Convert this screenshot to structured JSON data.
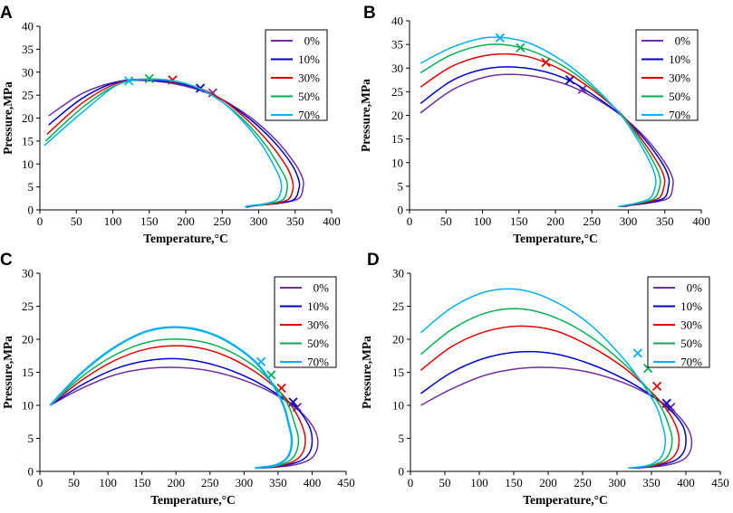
{
  "chart_data": [
    {
      "panel": "A",
      "type": "line",
      "xlabel": "Temperature,°C",
      "ylabel": "Pressure,MPa",
      "xlim": [
        0,
        400
      ],
      "ylim": [
        0,
        40
      ],
      "xticks": [
        0,
        50,
        100,
        150,
        200,
        250,
        300,
        350,
        400
      ],
      "yticks": [
        0,
        5,
        10,
        15,
        20,
        25,
        30,
        35,
        40
      ],
      "legend_position": "top-right",
      "series": [
        {
          "name": "0%",
          "color": "#7030a0",
          "critical_point": [
            237,
            25.5
          ],
          "x": [
            12,
            60,
            110,
            160,
            210,
            250,
            290,
            325,
            350,
            360,
            361,
            355,
            330,
            300,
            290,
            285
          ],
          "y": [
            20.5,
            25.5,
            28,
            28,
            26.5,
            24,
            20,
            15,
            10,
            7,
            5,
            2.5,
            1.5,
            1.0,
            0.8,
            0.6
          ]
        },
        {
          "name": "10%",
          "color": "#0000cc",
          "critical_point": [
            220,
            26.5
          ],
          "x": [
            12,
            60,
            110,
            160,
            210,
            250,
            290,
            320,
            345,
            355,
            355,
            348,
            325,
            300,
            288,
            284
          ],
          "y": [
            18.5,
            24.5,
            28,
            28.2,
            26.8,
            24,
            19.5,
            15,
            10,
            6.5,
            4.5,
            2.2,
            1.4,
            1.0,
            0.8,
            0.6
          ]
        },
        {
          "name": "30%",
          "color": "#e00000",
          "critical_point": [
            182,
            28.3
          ],
          "x": [
            10,
            60,
            110,
            160,
            210,
            250,
            285,
            315,
            338,
            346,
            347,
            340,
            318,
            298,
            286,
            283
          ],
          "y": [
            16.5,
            23.5,
            27.8,
            28.4,
            27,
            24,
            19.5,
            14.5,
            9.5,
            6.5,
            4.5,
            2.2,
            1.3,
            1.0,
            0.8,
            0.6
          ]
        },
        {
          "name": "50%",
          "color": "#00b050",
          "critical_point": [
            150,
            28.6
          ],
          "x": [
            8,
            60,
            110,
            160,
            210,
            250,
            283,
            310,
            330,
            338,
            339,
            333,
            312,
            296,
            285,
            282
          ],
          "y": [
            15,
            22.5,
            27.5,
            28.5,
            27,
            23.5,
            19,
            14,
            9,
            6.5,
            4.5,
            2.2,
            1.3,
            1.0,
            0.8,
            0.6
          ]
        },
        {
          "name": "70%",
          "color": "#00b0f0",
          "critical_point": [
            122,
            28.1
          ],
          "x": [
            6,
            60,
            110,
            160,
            210,
            250,
            280,
            305,
            323,
            330,
            331,
            325,
            307,
            293,
            284,
            281
          ],
          "y": [
            14,
            21.5,
            27.5,
            28.4,
            27,
            23.5,
            19,
            14,
            9,
            6.5,
            4.5,
            2.2,
            1.3,
            1.0,
            0.8,
            0.6
          ]
        }
      ]
    },
    {
      "panel": "B",
      "type": "line",
      "xlabel": "Temperature,°C",
      "ylabel": "Pressure,MPa",
      "xlim": [
        0,
        400
      ],
      "ylim": [
        0,
        40
      ],
      "xticks": [
        0,
        50,
        100,
        150,
        200,
        250,
        300,
        350,
        400
      ],
      "yticks": [
        0,
        5,
        10,
        15,
        20,
        25,
        30,
        35,
        40
      ],
      "legend_position": "top-right",
      "series": [
        {
          "name": "0%",
          "color": "#7030a0",
          "critical_point": [
            237,
            25.5
          ],
          "x": [
            15,
            60,
            110,
            160,
            210,
            250,
            290,
            325,
            350,
            360,
            361,
            355,
            330,
            305,
            295
          ],
          "y": [
            20.5,
            25.5,
            28.3,
            28.5,
            26.8,
            24,
            20,
            15,
            10,
            7,
            5,
            2.5,
            1.5,
            1.0,
            0.7
          ]
        },
        {
          "name": "10%",
          "color": "#0000cc",
          "critical_point": [
            220,
            27.5
          ],
          "x": [
            15,
            60,
            110,
            160,
            210,
            250,
            290,
            322,
            346,
            355,
            355,
            349,
            325,
            302,
            292
          ],
          "y": [
            22.5,
            27.5,
            30,
            30,
            28,
            24.5,
            20,
            15,
            10,
            7,
            5,
            2.5,
            1.5,
            1.0,
            0.7
          ]
        },
        {
          "name": "30%",
          "color": "#e00000",
          "critical_point": [
            187,
            31.2
          ],
          "x": [
            15,
            60,
            110,
            160,
            210,
            250,
            290,
            318,
            340,
            349,
            349,
            342,
            320,
            300,
            290
          ],
          "y": [
            26,
            30.5,
            32.8,
            32.5,
            29.5,
            25.5,
            20.3,
            15,
            10,
            7,
            5,
            2.5,
            1.5,
            1.0,
            0.7
          ]
        },
        {
          "name": "50%",
          "color": "#00b050",
          "critical_point": [
            152,
            34.3
          ],
          "x": [
            15,
            60,
            110,
            160,
            210,
            250,
            290,
            315,
            335,
            343,
            343,
            336,
            316,
            298,
            288
          ],
          "y": [
            29,
            33,
            35,
            34,
            30.5,
            26,
            20.2,
            15,
            10,
            7,
            5,
            2.5,
            1.5,
            1.0,
            0.7
          ]
        },
        {
          "name": "70%",
          "color": "#00b0f0",
          "critical_point": [
            124,
            36.4
          ],
          "x": [
            15,
            60,
            110,
            160,
            210,
            250,
            290,
            312,
            330,
            337,
            337,
            330,
            312,
            296,
            286
          ],
          "y": [
            31,
            34.5,
            36.5,
            35.5,
            31.5,
            26.5,
            20,
            15,
            10,
            7,
            5,
            2.5,
            1.5,
            1.0,
            0.7
          ]
        }
      ]
    },
    {
      "panel": "C",
      "type": "line",
      "xlabel": "Temperature,°C",
      "ylabel": "Pressure,MPa",
      "xlim": [
        0,
        450
      ],
      "ylim": [
        0,
        30
      ],
      "xticks": [
        0,
        50,
        100,
        150,
        200,
        250,
        300,
        350,
        400,
        450
      ],
      "yticks": [
        0,
        5,
        10,
        15,
        20,
        25,
        30
      ],
      "legend_position": "top-right",
      "series": [
        {
          "name": "0%",
          "color": "#7030a0",
          "critical_point": [
            378,
            9.7
          ],
          "x": [
            15,
            60,
            110,
            160,
            210,
            260,
            310,
            350,
            380,
            400,
            408,
            406,
            395,
            370,
            340,
            325
          ],
          "y": [
            10,
            12.5,
            14.6,
            15.6,
            15.7,
            15,
            13.4,
            11.4,
            9.3,
            7,
            5,
            3,
            1.7,
            0.9,
            0.6,
            0.5
          ]
        },
        {
          "name": "10%",
          "color": "#0000cc",
          "critical_point": [
            372,
            10.5
          ],
          "x": [
            15,
            60,
            110,
            160,
            210,
            260,
            310,
            350,
            378,
            395,
            400,
            397,
            385,
            360,
            335,
            322
          ],
          "y": [
            10,
            13,
            15.5,
            16.8,
            17,
            16,
            14,
            11.6,
            9.5,
            7,
            5,
            3,
            1.7,
            0.9,
            0.6,
            0.5
          ]
        },
        {
          "name": "30%",
          "color": "#e00000",
          "critical_point": [
            355,
            12.6
          ],
          "x": [
            15,
            60,
            110,
            160,
            210,
            260,
            310,
            350,
            372,
            385,
            390,
            387,
            376,
            355,
            330,
            320
          ],
          "y": [
            10,
            13.7,
            16.8,
            18.6,
            19,
            18,
            15.5,
            12.3,
            9.6,
            7,
            5,
            3,
            1.7,
            0.9,
            0.6,
            0.5
          ]
        },
        {
          "name": "50%",
          "color": "#00b050",
          "critical_point": [
            340,
            14.6
          ],
          "x": [
            15,
            60,
            110,
            160,
            210,
            260,
            310,
            345,
            365,
            375,
            380,
            377,
            368,
            350,
            328,
            318
          ],
          "y": [
            10,
            14.2,
            17.6,
            19.6,
            20,
            19,
            16.3,
            13,
            10,
            7,
            5,
            3,
            1.7,
            0.9,
            0.6,
            0.5
          ]
        },
        {
          "name": "70%",
          "color": "#00b0f0",
          "critical_point": [
            325,
            16.6
          ],
          "x": [
            15,
            60,
            110,
            160,
            210,
            260,
            310,
            340,
            358,
            366,
            370,
            368,
            360,
            345,
            326,
            316
          ],
          "y": [
            10,
            14.8,
            18.8,
            21.3,
            21.8,
            20.5,
            17.2,
            13.5,
            10,
            7,
            5,
            3,
            1.7,
            0.9,
            0.6,
            0.5
          ]
        }
      ]
    },
    {
      "panel": "D",
      "type": "line",
      "xlabel": "Temperature,°C",
      "ylabel": "Pressure,MPa",
      "xlim": [
        0,
        450
      ],
      "ylim": [
        0,
        30
      ],
      "xticks": [
        0,
        50,
        100,
        150,
        200,
        250,
        300,
        350,
        400,
        450
      ],
      "yticks": [
        0,
        5,
        10,
        15,
        20,
        25,
        30
      ],
      "legend_position": "top-right",
      "series": [
        {
          "name": "0%",
          "color": "#7030a0",
          "critical_point": [
            378,
            9.7
          ],
          "x": [
            15,
            60,
            110,
            160,
            210,
            260,
            310,
            350,
            380,
            400,
            408,
            406,
            395,
            370,
            340,
            325
          ],
          "y": [
            10,
            12.5,
            14.6,
            15.6,
            15.7,
            15,
            13.4,
            11.4,
            9.3,
            7,
            5,
            3,
            1.7,
            0.9,
            0.6,
            0.5
          ]
        },
        {
          "name": "10%",
          "color": "#0000cc",
          "critical_point": [
            372,
            10.3
          ],
          "x": [
            15,
            60,
            110,
            160,
            210,
            260,
            310,
            350,
            378,
            395,
            400,
            397,
            385,
            360,
            335,
            322
          ],
          "y": [
            11.8,
            15,
            17.2,
            18.1,
            17.8,
            16.3,
            14,
            11.5,
            9.2,
            7,
            5,
            3,
            1.7,
            0.9,
            0.6,
            0.5
          ]
        },
        {
          "name": "30%",
          "color": "#e00000",
          "critical_point": [
            358,
            12.9
          ],
          "x": [
            15,
            60,
            110,
            160,
            210,
            260,
            310,
            350,
            372,
            385,
            390,
            387,
            376,
            355,
            330,
            320
          ],
          "y": [
            15.3,
            18.9,
            21.2,
            22,
            21.3,
            19,
            15.7,
            12,
            9.4,
            7,
            5,
            3,
            1.7,
            0.9,
            0.6,
            0.5
          ]
        },
        {
          "name": "50%",
          "color": "#00b050",
          "critical_point": [
            345,
            15.6
          ],
          "x": [
            15,
            60,
            110,
            160,
            210,
            260,
            310,
            345,
            365,
            375,
            380,
            377,
            368,
            350,
            328,
            318
          ],
          "y": [
            17.7,
            21.5,
            24,
            24.6,
            23.3,
            20.5,
            16.3,
            12.5,
            9.5,
            7,
            5,
            3,
            1.7,
            0.9,
            0.6,
            0.5
          ]
        },
        {
          "name": "70%",
          "color": "#00b0f0",
          "critical_point": [
            330,
            17.9
          ],
          "x": [
            15,
            60,
            110,
            160,
            210,
            260,
            310,
            340,
            358,
            366,
            370,
            368,
            360,
            345,
            326,
            316
          ],
          "y": [
            21,
            24.8,
            27.2,
            27.5,
            25.7,
            22.3,
            17,
            12.8,
            9.6,
            7,
            5,
            3,
            1.7,
            0.9,
            0.6,
            0.5
          ]
        }
      ]
    }
  ]
}
